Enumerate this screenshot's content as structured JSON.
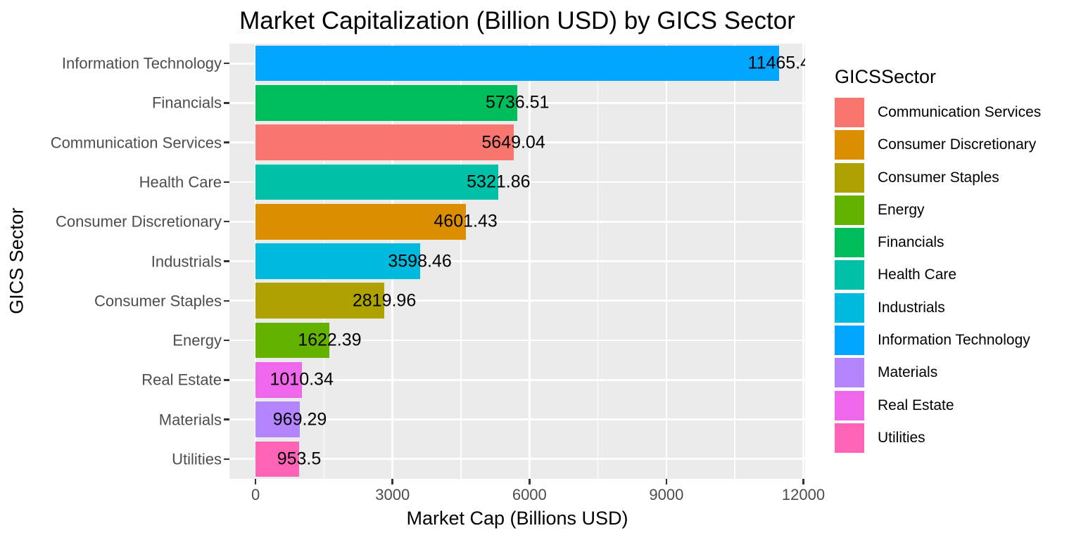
{
  "colors": {
    "panel_background": "#EBEBEB",
    "gridline": "#FFFFFF",
    "axis_text": "#4D4D4D",
    "tick_mark": "#333333",
    "text": "#000000",
    "figure_background": "#FFFFFF"
  },
  "legend": {
    "title": "GICSSector",
    "items": [
      {
        "label": "Communication Services",
        "color": "#F8766D"
      },
      {
        "label": "Consumer Discretionary",
        "color": "#DB8E00"
      },
      {
        "label": "Consumer Staples",
        "color": "#AEA200"
      },
      {
        "label": "Energy",
        "color": "#64B200"
      },
      {
        "label": "Financials",
        "color": "#00BD5C"
      },
      {
        "label": "Health Care",
        "color": "#00C1A7"
      },
      {
        "label": "Industrials",
        "color": "#00BADE"
      },
      {
        "label": "Information Technology",
        "color": "#00A6FF"
      },
      {
        "label": "Materials",
        "color": "#B385FF"
      },
      {
        "label": "Real Estate",
        "color": "#EF67EB"
      },
      {
        "label": "Utilities",
        "color": "#FF63B6"
      }
    ]
  },
  "chart_data": {
    "type": "bar",
    "orientation": "horizontal",
    "title": "Market Capitalization (Billion USD) by GICS Sector",
    "xlabel": "Market Cap (Billions USD)",
    "ylabel": "GICS Sector",
    "categories": [
      "Information Technology",
      "Financials",
      "Communication Services",
      "Health Care",
      "Consumer Discretionary",
      "Industrials",
      "Consumer Staples",
      "Energy",
      "Real Estate",
      "Materials",
      "Utilities"
    ],
    "values": [
      11465.4,
      5736.51,
      5649.04,
      5321.86,
      4601.43,
      3598.46,
      2819.96,
      1622.39,
      1010.34,
      969.29,
      953.5
    ],
    "labels": [
      "11465.4",
      "5736.51",
      "5649.04",
      "5321.86",
      "4601.43",
      "3598.46",
      "2819.96",
      "1622.39",
      "1010.34",
      "969.29",
      "953.5"
    ],
    "colors": [
      "#00A6FF",
      "#00BD5C",
      "#F8766D",
      "#00C1A7",
      "#DB8E00",
      "#00BADE",
      "#AEA200",
      "#64B200",
      "#EF67EB",
      "#B385FF",
      "#FF63B6"
    ],
    "x_ticks": [
      0,
      3000,
      6000,
      9000,
      12000
    ],
    "x_tick_labels": [
      "0",
      "3000",
      "6000",
      "9000",
      "12000"
    ],
    "x_minor_ticks": [
      1500,
      4500,
      7500,
      10500
    ],
    "x_domain": [
      -573,
      12039
    ],
    "xlim": [
      0,
      12000
    ],
    "bar_width_fraction": 0.9,
    "grid": true,
    "legend_position": "right"
  }
}
